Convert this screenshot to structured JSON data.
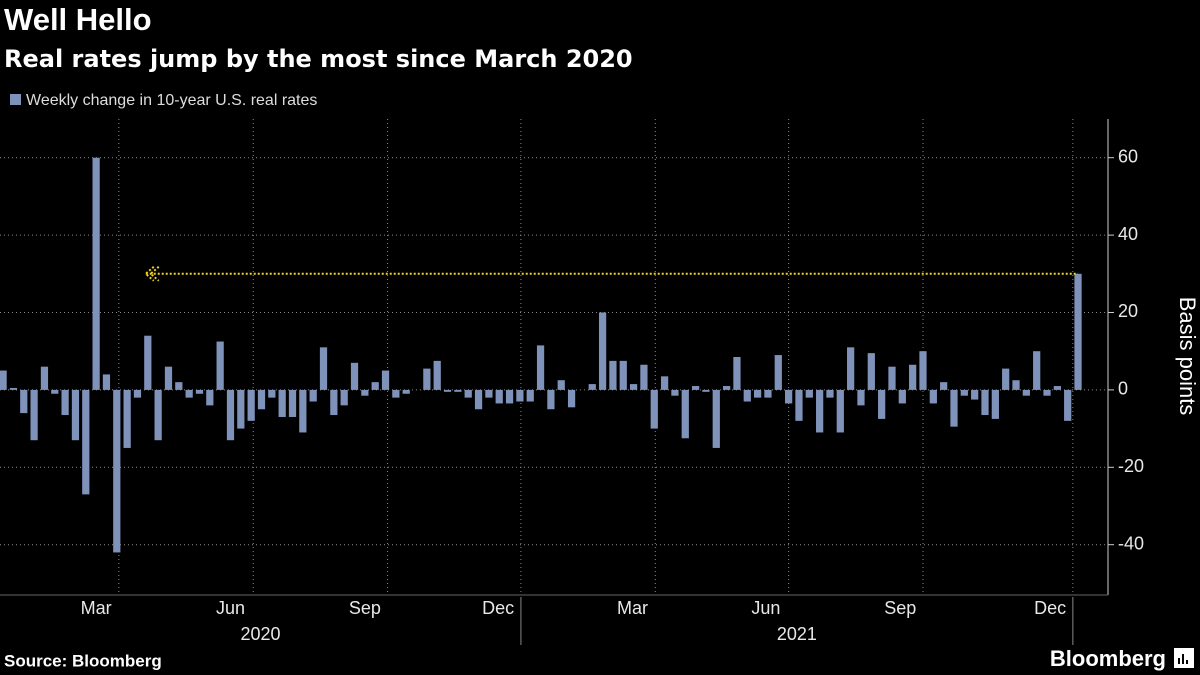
{
  "chart_data": {
    "type": "bar",
    "title": "Well Hello",
    "subtitle": "Real rates jump by the most since March 2020",
    "series": [
      {
        "name": "Weekly change in 10-year U.S. real rates",
        "color": "#7f92b9",
        "values": [
          5,
          0.5,
          -6,
          -13,
          6,
          -1,
          -6.5,
          -13,
          -27,
          60,
          4,
          -42,
          -15,
          -2,
          14,
          -13,
          6,
          2,
          -2,
          -1,
          -4,
          12.5,
          -13,
          -10,
          -8,
          -5,
          -2,
          -7,
          -7,
          -11,
          -3,
          11,
          -6.5,
          -4,
          7,
          -1.5,
          2,
          5,
          -2,
          -1,
          0,
          5.5,
          7.5,
          -0.5,
          -0.5,
          -2,
          -5,
          -2,
          -3.5,
          -3.5,
          -3,
          -3,
          11.5,
          -5,
          2.5,
          -4.5,
          0,
          1.5,
          20,
          7.5,
          7.5,
          1.5,
          6.5,
          -10,
          3.5,
          -1.5,
          -12.5,
          1,
          -0.5,
          -15,
          1,
          8.5,
          -3,
          -2,
          -2,
          9,
          -3.5,
          -8,
          -2,
          -11,
          -2,
          -11,
          11,
          -4,
          9.5,
          -7.5,
          6,
          -3.5,
          6.5,
          10,
          -3.5,
          2,
          -9.5,
          -1.5,
          -2.5,
          -6.5,
          -7.5,
          5.5,
          2.5,
          -1.5,
          10,
          -1.5,
          1,
          -8,
          30
        ]
      }
    ],
    "xlim": [
      -0.3,
      106.9
    ],
    "xticks": [
      {
        "value": 11.2,
        "label": "Mar"
      },
      {
        "value": 24.2,
        "label": "Jun"
      },
      {
        "value": 37.2,
        "label": "Sep"
      },
      {
        "value": 50.1,
        "label": "Dec"
      },
      {
        "value": 63.1,
        "label": "Mar"
      },
      {
        "value": 76.0,
        "label": "Jun"
      },
      {
        "value": 89.0,
        "label": "Sep"
      },
      {
        "value": 103.5,
        "label": "Dec"
      }
    ],
    "years": [
      "2020",
      "2021"
    ],
    "ylim": [
      -53,
      70
    ],
    "yticks": [
      -40,
      -20,
      0,
      20,
      40,
      60
    ],
    "ylabel": "Basis points",
    "grid": true,
    "source": "Source: Bloomberg",
    "brand": "Bloomberg"
  }
}
